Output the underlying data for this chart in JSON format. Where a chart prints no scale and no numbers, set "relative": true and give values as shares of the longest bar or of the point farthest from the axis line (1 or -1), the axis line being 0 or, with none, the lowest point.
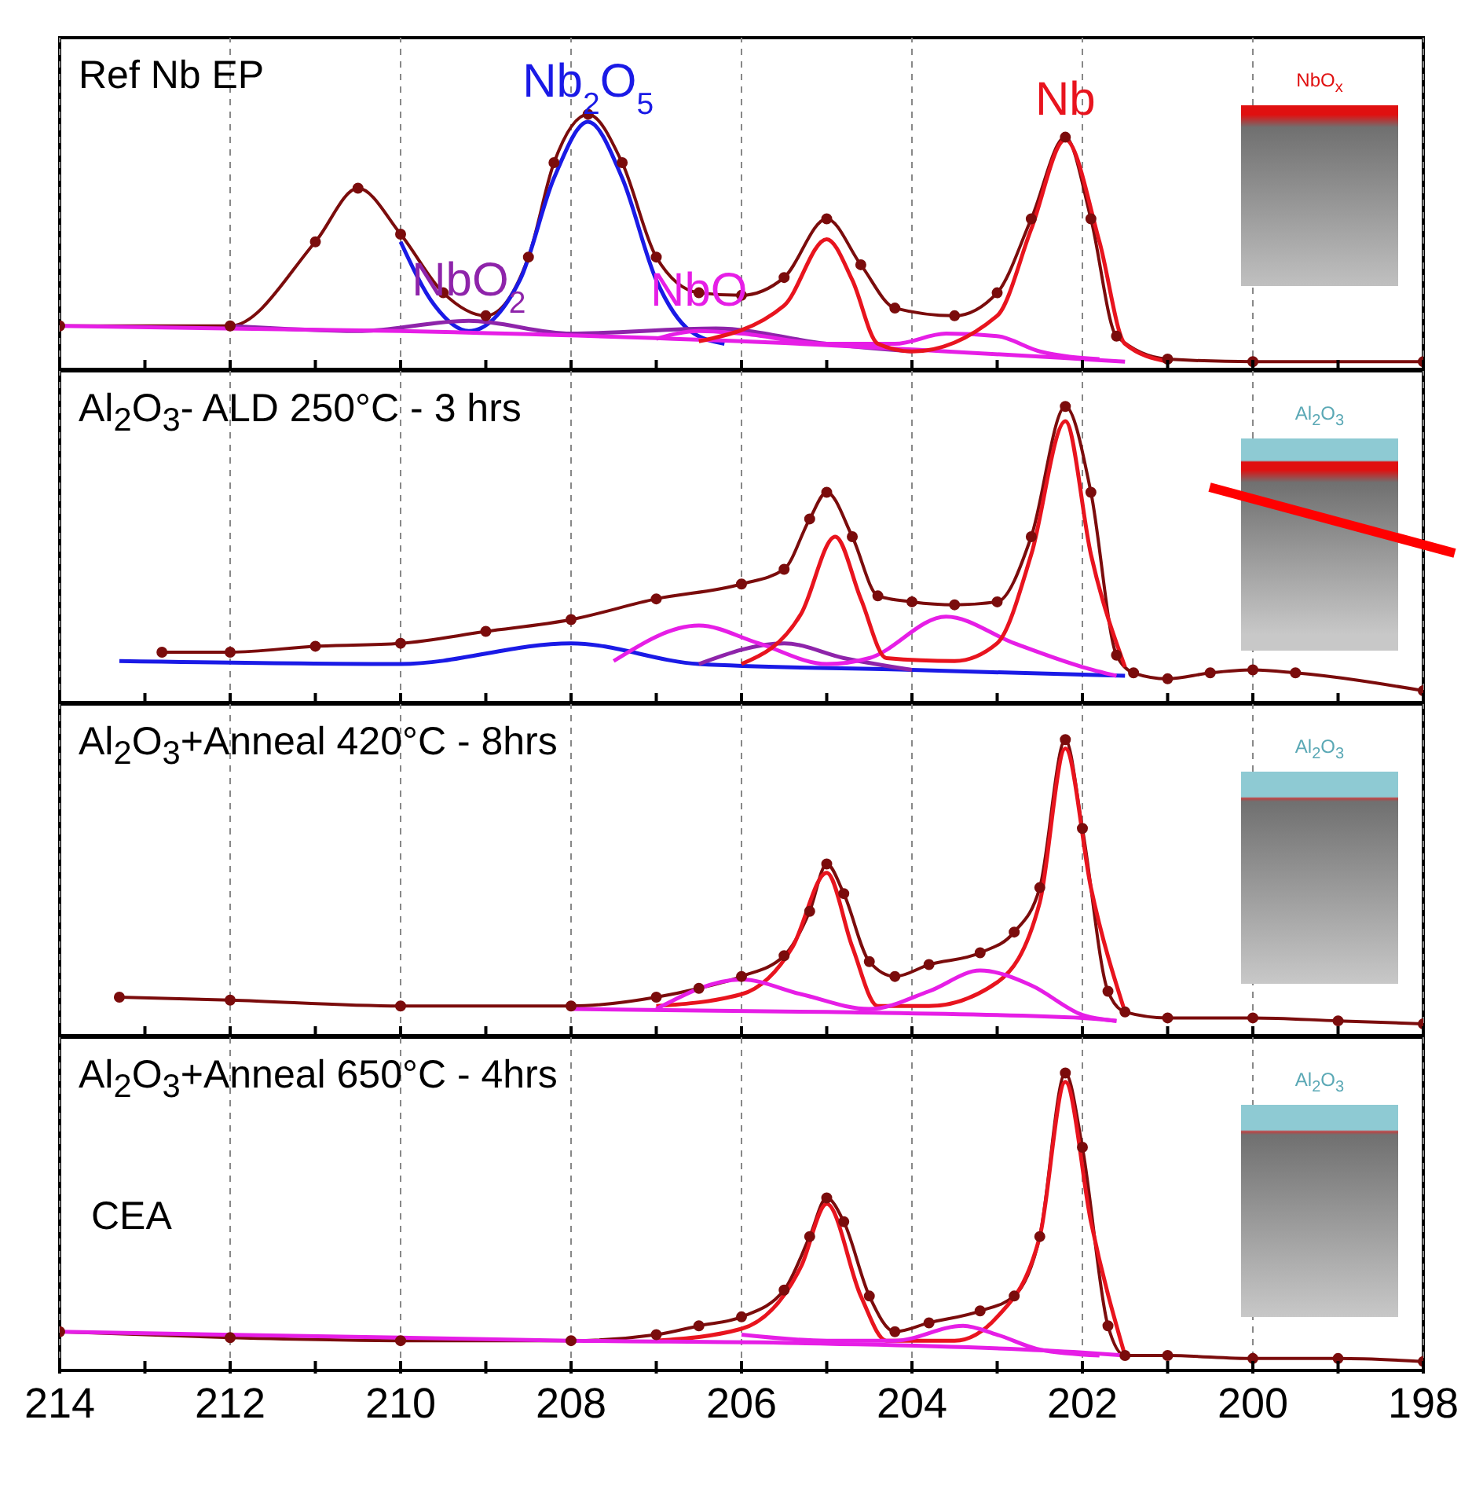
{
  "chart_data": [
    {
      "type": "line",
      "relative": true,
      "xlim": [
        214,
        198
      ],
      "xticks": [
        214,
        {
          "value": 213,
          "label": null
        },
        212,
        {
          "value": 211,
          "label": null
        },
        210,
        {
          "value": 209,
          "label": null
        },
        208,
        {
          "value": 207,
          "label": null
        },
        206,
        {
          "value": 205,
          "label": null
        },
        204,
        {
          "value": 203,
          "label": null
        },
        202,
        {
          "value": 201,
          "label": null
        },
        200,
        {
          "value": 199,
          "label": null
        },
        198
      ],
      "tick_labels": false,
      "grid": "x",
      "annotations": [
        "Ref Nb EP",
        "NbO$_{x}$"
      ],
      "series": [
        {
          "color": "#7b0c0c",
          "marker": "circle",
          "x": [
            214,
            212,
            211,
            210.5,
            210,
            209.5,
            209,
            208.5,
            208.2,
            207.8,
            207.4,
            207,
            206.5,
            206,
            205.5,
            205,
            204.6,
            204.2,
            203.5,
            203,
            202.6,
            202.2,
            201.9,
            201.6,
            201,
            200,
            198
          ],
          "values": [
            0.17,
            0.17,
            0.5,
            0.71,
            0.53,
            0.3,
            0.21,
            0.44,
            0.81,
            1.0,
            0.81,
            0.44,
            0.3,
            0.29,
            0.36,
            0.59,
            0.41,
            0.24,
            0.21,
            0.3,
            0.59,
            0.91,
            0.59,
            0.13,
            0.04,
            0.03,
            0.03
          ]
        },
        {
          "name": "Nb$_{2}$O$_{5}$",
          "color": "#1a1ae6",
          "x": [
            210,
            209.6,
            209.2,
            208.6,
            208.2,
            207.8,
            207.4,
            207,
            206.6,
            206.2
          ],
          "values": [
            0.5,
            0.25,
            0.15,
            0.35,
            0.75,
            0.97,
            0.75,
            0.35,
            0.15,
            0.1
          ]
        },
        {
          "name": "NbO$_{2}$",
          "color": "#8e24aa",
          "x": [
            212,
            210.5,
            209.2,
            208,
            206.3,
            205,
            204
          ],
          "values": [
            0.17,
            0.15,
            0.19,
            0.14,
            0.16,
            0.1,
            0.07
          ]
        },
        {
          "name": "NbO",
          "color": "#e61ee6",
          "x": [
            207,
            206.5,
            206,
            205,
            204.2,
            203.6,
            203,
            202.5,
            201.8
          ],
          "values": [
            0.12,
            0.15,
            0.14,
            0.1,
            0.1,
            0.14,
            0.13,
            0.07,
            0.04
          ]
        },
        {
          "color": "#e61ee6",
          "x": [
            214,
            210,
            206,
            202,
            201.5
          ],
          "values": [
            0.17,
            0.15,
            0.11,
            0.04,
            0.03
          ]
        },
        {
          "name": "Nb",
          "color": "#e8141e",
          "x": [
            206.5,
            205.5,
            205,
            204.7,
            204.4,
            204,
            203,
            202.6,
            202.2,
            201.8,
            201.5,
            201
          ],
          "values": [
            0.11,
            0.25,
            0.51,
            0.35,
            0.1,
            0.07,
            0.21,
            0.55,
            0.9,
            0.5,
            0.1,
            0.03
          ]
        }
      ]
    },
    {
      "type": "line",
      "relative": true,
      "xlim": [
        214,
        198
      ],
      "xticks": [
        214,
        {
          "value": 213,
          "label": null
        },
        212,
        {
          "value": 211,
          "label": null
        },
        210,
        {
          "value": 209,
          "label": null
        },
        208,
        {
          "value": 207,
          "label": null
        },
        206,
        {
          "value": 205,
          "label": null
        },
        204,
        {
          "value": 203,
          "label": null
        },
        202,
        {
          "value": 201,
          "label": null
        },
        200,
        {
          "value": 199,
          "label": null
        },
        198
      ],
      "tick_labels": false,
      "grid": "x",
      "annotations": [
        "Al$_{2}$O$_{3}$- ALD 250°C - 3 hrs",
        "Al$_{2}$O$_{3}$"
      ],
      "series": [
        {
          "color": "#7b0c0c",
          "marker": "circle",
          "x": [
            212.8,
            212,
            211,
            210,
            209,
            208,
            207,
            206,
            205.5,
            205.2,
            205,
            204.7,
            204.4,
            204,
            203.5,
            203,
            202.6,
            202.2,
            201.9,
            201.6,
            201.4,
            201,
            200.5,
            200,
            199.5,
            198
          ],
          "values": [
            0.17,
            0.17,
            0.19,
            0.2,
            0.24,
            0.28,
            0.35,
            0.4,
            0.45,
            0.62,
            0.71,
            0.56,
            0.36,
            0.34,
            0.33,
            0.34,
            0.56,
            1.0,
            0.71,
            0.16,
            0.1,
            0.08,
            0.1,
            0.11,
            0.1,
            0.04
          ]
        },
        {
          "color": "#1a1ae6",
          "x": [
            213.3,
            210,
            208,
            206.5,
            204,
            201.5
          ],
          "values": [
            0.14,
            0.13,
            0.2,
            0.13,
            0.11,
            0.09
          ]
        },
        {
          "color": "#8e24aa",
          "x": [
            206.5,
            205.5,
            204.8,
            204
          ],
          "values": [
            0.13,
            0.2,
            0.15,
            0.11
          ]
        },
        {
          "color": "#e61ee6",
          "x": [
            207.5,
            206.5,
            205.8,
            205,
            204.5,
            203.6,
            202.8,
            202,
            201.6
          ],
          "values": [
            0.14,
            0.26,
            0.2,
            0.13,
            0.15,
            0.29,
            0.2,
            0.12,
            0.09
          ]
        },
        {
          "color": "#e8141e",
          "x": [
            206,
            205.3,
            204.9,
            204.6,
            204.3,
            203.5,
            203,
            202.6,
            202.2,
            201.9,
            201.5
          ],
          "values": [
            0.13,
            0.3,
            0.56,
            0.35,
            0.15,
            0.14,
            0.2,
            0.5,
            0.95,
            0.5,
            0.12
          ]
        }
      ]
    },
    {
      "type": "line",
      "relative": true,
      "xlim": [
        214,
        198
      ],
      "xticks": [
        214,
        {
          "value": 213,
          "label": null
        },
        212,
        {
          "value": 211,
          "label": null
        },
        210,
        {
          "value": 209,
          "label": null
        },
        208,
        {
          "value": 207,
          "label": null
        },
        206,
        {
          "value": 205,
          "label": null
        },
        204,
        {
          "value": 203,
          "label": null
        },
        202,
        {
          "value": 201,
          "label": null
        },
        200,
        {
          "value": 199,
          "label": null
        },
        198
      ],
      "tick_labels": false,
      "grid": "x",
      "annotations": [
        "Al$_{2}$O$_{3}$+Anneal 420°C - 8hrs",
        "Al$_{2}$O$_{3}$"
      ],
      "series": [
        {
          "color": "#7b0c0c",
          "marker": "circle",
          "x": [
            213.3,
            212,
            210,
            208,
            207,
            206.5,
            206,
            205.5,
            205.2,
            205,
            204.8,
            204.5,
            204.2,
            203.8,
            203.2,
            202.8,
            202.5,
            202.2,
            202,
            201.7,
            201.5,
            201,
            200,
            199,
            198
          ],
          "values": [
            0.13,
            0.12,
            0.1,
            0.1,
            0.13,
            0.16,
            0.2,
            0.27,
            0.42,
            0.58,
            0.48,
            0.25,
            0.2,
            0.24,
            0.28,
            0.35,
            0.5,
            1.0,
            0.7,
            0.15,
            0.08,
            0.06,
            0.06,
            0.05,
            0.04
          ]
        },
        {
          "color": "#e8141e",
          "x": [
            207,
            206,
            205.4,
            205,
            204.7,
            204.4,
            203.8,
            203,
            202.5,
            202.2,
            201.9,
            201.5
          ],
          "values": [
            0.1,
            0.14,
            0.3,
            0.55,
            0.3,
            0.1,
            0.1,
            0.18,
            0.45,
            0.97,
            0.5,
            0.08
          ]
        },
        {
          "color": "#e61ee6",
          "x": [
            207,
            206,
            205.3,
            204.5,
            203.8,
            203.2,
            202.6,
            202,
            201.6
          ],
          "values": [
            0.09,
            0.19,
            0.14,
            0.09,
            0.15,
            0.22,
            0.17,
            0.07,
            0.05
          ]
        },
        {
          "color": "#e61ee6",
          "x": [
            208,
            205,
            202,
            201.6
          ],
          "values": [
            0.09,
            0.08,
            0.06,
            0.05
          ]
        }
      ]
    },
    {
      "type": "line",
      "relative": true,
      "xlim": [
        214,
        198
      ],
      "xticks": [
        214,
        {
          "value": 213,
          "label": null
        },
        212,
        {
          "value": 211,
          "label": null
        },
        210,
        {
          "value": 209,
          "label": null
        },
        208,
        {
          "value": 207,
          "label": null
        },
        206,
        {
          "value": 205,
          "label": null
        },
        204,
        {
          "value": 203,
          "label": null
        },
        202,
        {
          "value": 201,
          "label": null
        },
        200,
        {
          "value": 199,
          "label": null
        },
        198
      ],
      "tick_labels": "x",
      "grid": "x",
      "annotations": [
        "Al$_{2}$O$_{3}$+Anneal 650°C - 4hrs",
        "Al$_{2}$O$_{3}$",
        "CEA"
      ],
      "series": [
        {
          "color": "#7b0c0c",
          "marker": "circle",
          "x": [
            214,
            212,
            210,
            208,
            207,
            206.5,
            206,
            205.5,
            205.2,
            205,
            204.8,
            204.5,
            204.2,
            203.8,
            203.2,
            202.8,
            202.5,
            202.2,
            202,
            201.7,
            201.5,
            201,
            200,
            199,
            198
          ],
          "values": [
            0.13,
            0.11,
            0.1,
            0.1,
            0.12,
            0.15,
            0.18,
            0.27,
            0.45,
            0.58,
            0.5,
            0.25,
            0.13,
            0.16,
            0.2,
            0.25,
            0.45,
            1.0,
            0.75,
            0.15,
            0.05,
            0.05,
            0.04,
            0.04,
            0.03
          ]
        },
        {
          "color": "#e8141e",
          "x": [
            207,
            206,
            205.3,
            205,
            204.6,
            204.3,
            203.5,
            203,
            202.5,
            202.2,
            201.9,
            201.5
          ],
          "values": [
            0.1,
            0.14,
            0.35,
            0.56,
            0.25,
            0.1,
            0.1,
            0.18,
            0.45,
            0.97,
            0.5,
            0.05
          ]
        },
        {
          "color": "#e61ee6",
          "x": [
            206,
            205,
            204.2,
            203.4,
            203,
            202.5,
            201.8
          ],
          "values": [
            0.12,
            0.1,
            0.1,
            0.15,
            0.12,
            0.07,
            0.05
          ]
        },
        {
          "color": "#e61ee6",
          "x": [
            214,
            208,
            205,
            202,
            201.5
          ],
          "values": [
            0.13,
            0.1,
            0.09,
            0.06,
            0.05
          ]
        }
      ]
    }
  ]
}
